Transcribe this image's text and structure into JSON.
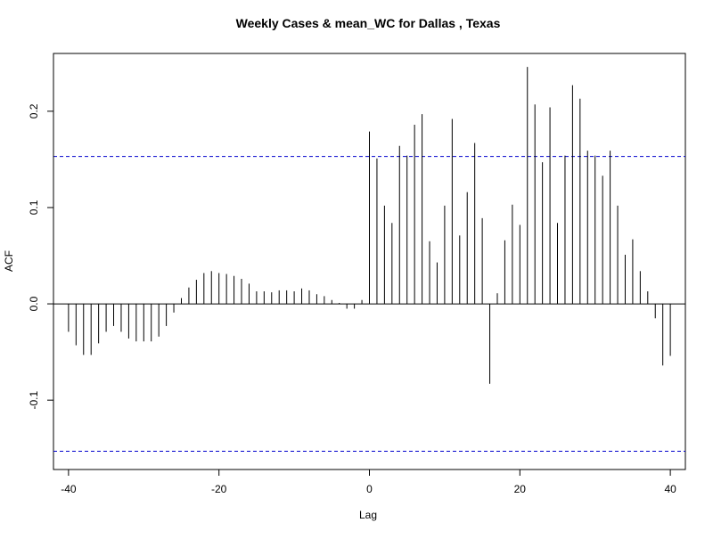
{
  "chart_data": {
    "type": "bar",
    "title": "Weekly Cases & mean_WC for Dallas , Texas",
    "xlabel": "Lag",
    "ylabel": "ACF",
    "xlim": [
      -42,
      42
    ],
    "ylim": [
      -0.172,
      0.26
    ],
    "x_ticks": [
      -40,
      -20,
      0,
      20,
      40
    ],
    "x_tick_labels": [
      "-40",
      "-20",
      "0",
      "20",
      "40"
    ],
    "y_ticks": [
      -0.1,
      0.0,
      0.1,
      0.2
    ],
    "y_tick_labels": [
      "-0.1",
      "0.0",
      "0.1",
      "0.2"
    ],
    "confidence_bound": 0.153,
    "zero_line": true,
    "colors": {
      "bars": "#000000",
      "confidence": "#0000CD",
      "axis": "#000000"
    },
    "x": [
      -40,
      -39,
      -38,
      -37,
      -36,
      -35,
      -34,
      -33,
      -32,
      -31,
      -30,
      -29,
      -28,
      -27,
      -26,
      -25,
      -24,
      -23,
      -22,
      -21,
      -20,
      -19,
      -18,
      -17,
      -16,
      -15,
      -14,
      -13,
      -12,
      -11,
      -10,
      -9,
      -8,
      -7,
      -6,
      -5,
      -4,
      -3,
      -2,
      -1,
      0,
      1,
      2,
      3,
      4,
      5,
      6,
      7,
      8,
      9,
      10,
      11,
      12,
      13,
      14,
      15,
      16,
      17,
      18,
      19,
      20,
      21,
      22,
      23,
      24,
      25,
      26,
      27,
      28,
      29,
      30,
      31,
      32,
      33,
      34,
      35,
      36,
      37,
      38,
      39,
      40
    ],
    "values": [
      -0.029,
      -0.043,
      -0.053,
      -0.053,
      -0.041,
      -0.029,
      -0.023,
      -0.029,
      -0.036,
      -0.039,
      -0.039,
      -0.039,
      -0.034,
      -0.023,
      -0.009,
      0.006,
      0.017,
      0.025,
      0.032,
      0.034,
      0.032,
      0.031,
      0.029,
      0.026,
      0.021,
      0.013,
      0.013,
      0.012,
      0.014,
      0.014,
      0.013,
      0.016,
      0.014,
      0.01,
      0.008,
      0.004,
      0.001,
      -0.005,
      -0.005,
      0.004,
      0.179,
      0.151,
      0.102,
      0.084,
      0.164,
      0.154,
      0.186,
      0.197,
      0.065,
      0.043,
      0.102,
      0.192,
      0.071,
      0.116,
      0.167,
      0.089,
      -0.083,
      0.011,
      0.066,
      0.103,
      0.082,
      0.246,
      0.207,
      0.147,
      0.204,
      0.084,
      0.154,
      0.227,
      0.213,
      0.159,
      0.154,
      0.133,
      0.159,
      0.102,
      0.051,
      0.067,
      0.034,
      0.013,
      -0.015,
      -0.064,
      -0.054
    ]
  }
}
